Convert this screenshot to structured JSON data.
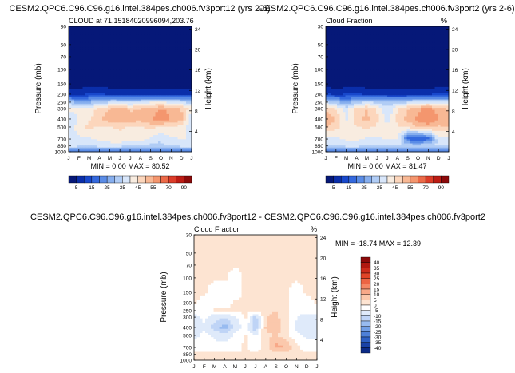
{
  "panels": [
    {
      "title": "CESM2.QPC6.C96.C96.g16.intel.384pes.ch006.fv3port12 (yrs 2-6)",
      "subtitle_left": "CLOUD at 71.15184020996094,203.76",
      "subtitle_right": "",
      "minmax": "MIN =   0.00 MAX =  80.52"
    },
    {
      "title": "CESM2.QPC6.C96.C96.g16.intel.384pes.ch006.fv3port2 (yrs 2-6)",
      "subtitle_left": "Cloud Fraction",
      "subtitle_right": "%",
      "minmax": "MIN =   0.00 MAX =  81.47"
    },
    {
      "title": "CESM2.QPC6.C96.C96.g16.intel.384pes.ch006.fv3port12 - CESM2.QPC6.C96.C96.g16.intel.384pes.ch006.fv3port2",
      "subtitle_left": "Cloud Fraction",
      "subtitle_right": "%",
      "minmax": "MIN = -18.74 MAX =  12.39"
    }
  ],
  "axes": {
    "ylabel": "Pressure (mb)",
    "y2label": "Height (km)",
    "pressure_ticks": [
      "30",
      "50",
      "70",
      "100",
      "150",
      "200",
      "250",
      "300",
      "400",
      "500",
      "700",
      "850",
      "1000"
    ],
    "height_ticks": [
      "24",
      "20",
      "16",
      "12",
      "8",
      "4"
    ],
    "month_ticks": [
      "J",
      "F",
      "M",
      "A",
      "M",
      "J",
      "J",
      "A",
      "S",
      "O",
      "N",
      "D",
      "J"
    ]
  },
  "colorbars": {
    "abs_labels": [
      "5",
      "15",
      "25",
      "35",
      "45",
      "55",
      "70",
      "90"
    ],
    "abs_colors": [
      "#061878",
      "#0a2eaa",
      "#1848cc",
      "#3469de",
      "#5a8ce6",
      "#86aeee",
      "#b0ccf5",
      "#d8e6fa",
      "#f8ece0",
      "#fcd6bc",
      "#f8b894",
      "#f4966e",
      "#ec6a48",
      "#dc3c28",
      "#bc1c14",
      "#8c0a0a"
    ],
    "diff_labels": [
      "40",
      "35",
      "30",
      "25",
      "20",
      "15",
      "10",
      "5",
      "0",
      "-5",
      "-10",
      "-15",
      "-20",
      "-25",
      "-30",
      "-35",
      "-40"
    ],
    "diff_colors": [
      "#8c0a0a",
      "#b01810",
      "#cc2c1c",
      "#e04428",
      "#ec6444",
      "#f48664",
      "#f8a888",
      "#fbc8ac",
      "#fde4d2",
      "#ffffff",
      "#dfeafa",
      "#bfd4f6",
      "#98bbf0",
      "#729fe6",
      "#4e80d8",
      "#2e60c4",
      "#1a42a6",
      "#0c2a86"
    ]
  },
  "chart_data": [
    {
      "type": "heatmap",
      "title": "CESM2.QPC6.C96.C96.g16.intel.384pes.ch006.fv3port12 (yrs 2-6)",
      "subtitle": "CLOUD at 71.15184020996094,203.76",
      "xlabel": "",
      "ylabel": "Pressure (mb)",
      "y2label": "Height (km)",
      "x": [
        "J",
        "F",
        "M",
        "A",
        "M",
        "J",
        "J",
        "A",
        "S",
        "O",
        "N",
        "D",
        "J"
      ],
      "y": [
        30,
        50,
        70,
        100,
        150,
        200,
        250,
        300,
        400,
        500,
        700,
        850,
        1000
      ],
      "values": [
        [
          0,
          0,
          0,
          0,
          0,
          0,
          0,
          0,
          0,
          0,
          0,
          0,
          0
        ],
        [
          0,
          0,
          0,
          0,
          0,
          0,
          0,
          0,
          0,
          0,
          0,
          0,
          0
        ],
        [
          0,
          0,
          0,
          0,
          0,
          0,
          0,
          0,
          0,
          0,
          0,
          0,
          0
        ],
        [
          0,
          0,
          0,
          0,
          0,
          0,
          0,
          0,
          0,
          0,
          0,
          0,
          0
        ],
        [
          2,
          2,
          3,
          3,
          2,
          2,
          2,
          2,
          2,
          2,
          2,
          2,
          2
        ],
        [
          10,
          9,
          12,
          12,
          10,
          9,
          9,
          9,
          9,
          8,
          9,
          10,
          10
        ],
        [
          35,
          30,
          32,
          34,
          40,
          40,
          38,
          40,
          44,
          45,
          42,
          40,
          35
        ],
        [
          48,
          45,
          47,
          52,
          56,
          58,
          55,
          56,
          58,
          62,
          60,
          56,
          48
        ],
        [
          40,
          46,
          50,
          55,
          60,
          62,
          60,
          58,
          62,
          66,
          62,
          58,
          40
        ],
        [
          40,
          48,
          52,
          50,
          50,
          52,
          50,
          50,
          52,
          50,
          50,
          48,
          40
        ],
        [
          45,
          44,
          44,
          46,
          46,
          48,
          46,
          47,
          44,
          40,
          44,
          45,
          45
        ],
        [
          45,
          40,
          40,
          42,
          44,
          42,
          40,
          40,
          38,
          38,
          40,
          42,
          45
        ],
        [
          20,
          20,
          20,
          20,
          20,
          20,
          20,
          20,
          20,
          20,
          20,
          20,
          20
        ]
      ],
      "zlim": [
        0,
        90
      ],
      "min": 0.0,
      "max": 80.52
    },
    {
      "type": "heatmap",
      "title": "CESM2.QPC6.C96.C96.g16.intel.384pes.ch006.fv3port2 (yrs 2-6)",
      "subtitle": "Cloud Fraction",
      "units": "%",
      "xlabel": "",
      "ylabel": "Pressure (mb)",
      "y2label": "Height (km)",
      "x": [
        "J",
        "F",
        "M",
        "A",
        "M",
        "J",
        "J",
        "A",
        "S",
        "O",
        "N",
        "D",
        "J"
      ],
      "y": [
        30,
        50,
        70,
        100,
        150,
        200,
        250,
        300,
        400,
        500,
        700,
        850,
        1000
      ],
      "values": [
        [
          0,
          0,
          0,
          0,
          0,
          0,
          0,
          0,
          0,
          0,
          0,
          0,
          0
        ],
        [
          0,
          0,
          0,
          0,
          0,
          0,
          0,
          0,
          0,
          0,
          0,
          0,
          0
        ],
        [
          0,
          0,
          0,
          0,
          0,
          0,
          0,
          0,
          0,
          0,
          0,
          0,
          0
        ],
        [
          0,
          0,
          0,
          0,
          0,
          0,
          0,
          0,
          0,
          0,
          0,
          0,
          0
        ],
        [
          2,
          2,
          2,
          3,
          2,
          2,
          2,
          2,
          2,
          2,
          2,
          2,
          2
        ],
        [
          12,
          10,
          12,
          12,
          10,
          10,
          10,
          9,
          9,
          9,
          10,
          12,
          12
        ],
        [
          40,
          34,
          30,
          35,
          40,
          38,
          35,
          36,
          38,
          42,
          42,
          40,
          40
        ],
        [
          55,
          50,
          42,
          52,
          56,
          50,
          40,
          50,
          56,
          60,
          65,
          58,
          55
        ],
        [
          62,
          56,
          44,
          54,
          58,
          52,
          42,
          52,
          58,
          64,
          68,
          62,
          62
        ],
        [
          56,
          52,
          48,
          50,
          52,
          50,
          46,
          50,
          52,
          56,
          58,
          55,
          56
        ],
        [
          42,
          44,
          46,
          46,
          44,
          44,
          46,
          46,
          20,
          15,
          20,
          44,
          42
        ],
        [
          40,
          40,
          42,
          42,
          40,
          40,
          40,
          40,
          38,
          38,
          40,
          40,
          40
        ],
        [
          20,
          20,
          20,
          20,
          20,
          20,
          20,
          20,
          20,
          20,
          20,
          20,
          20
        ]
      ],
      "zlim": [
        0,
        90
      ],
      "min": 0.0,
      "max": 81.47
    },
    {
      "type": "heatmap",
      "title": "CESM2.QPC6.C96.C96.g16.intel.384pes.ch006.fv3port12 - CESM2.QPC6.C96.C96.g16.intel.384pes.ch006.fv3port2",
      "subtitle": "Cloud Fraction",
      "units": "%",
      "xlabel": "",
      "ylabel": "Pressure (mb)",
      "y2label": "Height (km)",
      "x": [
        "J",
        "F",
        "M",
        "A",
        "M",
        "J",
        "J",
        "A",
        "S",
        "O",
        "N",
        "D",
        "J"
      ],
      "y": [
        30,
        50,
        70,
        100,
        150,
        200,
        250,
        300,
        400,
        500,
        700,
        850,
        1000
      ],
      "values": [
        [
          1,
          1,
          1,
          1,
          1,
          1,
          1,
          1,
          1,
          1,
          1,
          1,
          1
        ],
        [
          1,
          1,
          1,
          1,
          1,
          1,
          1,
          1,
          1,
          1,
          1,
          1,
          1
        ],
        [
          1,
          1,
          1,
          1,
          1,
          1,
          1,
          1,
          1,
          1,
          1,
          1,
          1
        ],
        [
          1,
          1,
          1,
          1,
          -3,
          1,
          1,
          1,
          1,
          1,
          1,
          1,
          1
        ],
        [
          1,
          1,
          -3,
          -3,
          -3,
          1,
          1,
          1,
          2,
          1,
          -3,
          1,
          1
        ],
        [
          1,
          -3,
          -3,
          -3,
          1,
          1,
          1,
          2,
          3,
          1,
          -3,
          -3,
          1
        ],
        [
          -4,
          -4,
          1,
          1,
          1,
          1,
          2,
          4,
          5,
          1,
          -4,
          -4,
          -4
        ],
        [
          -6,
          -4,
          -8,
          -10,
          -6,
          1,
          -12,
          5,
          6,
          2,
          -5,
          -6,
          -6
        ],
        [
          -8,
          -6,
          -12,
          -18,
          -8,
          -4,
          -14,
          6,
          8,
          3,
          -6,
          -8,
          -8
        ],
        [
          -6,
          -4,
          -6,
          -8,
          -4,
          1,
          -6,
          4,
          5,
          2,
          -4,
          -6,
          -6
        ],
        [
          -3,
          -3,
          -3,
          -3,
          -3,
          1,
          -3,
          3,
          12,
          10,
          2,
          -3,
          -3
        ],
        [
          1,
          1,
          1,
          1,
          1,
          1,
          1,
          1,
          1,
          1,
          1,
          1,
          1
        ],
        [
          1,
          1,
          1,
          1,
          1,
          1,
          1,
          1,
          1,
          1,
          1,
          1,
          1
        ]
      ],
      "zlim": [
        -40,
        40
      ],
      "min": -18.74,
      "max": 12.39
    }
  ]
}
